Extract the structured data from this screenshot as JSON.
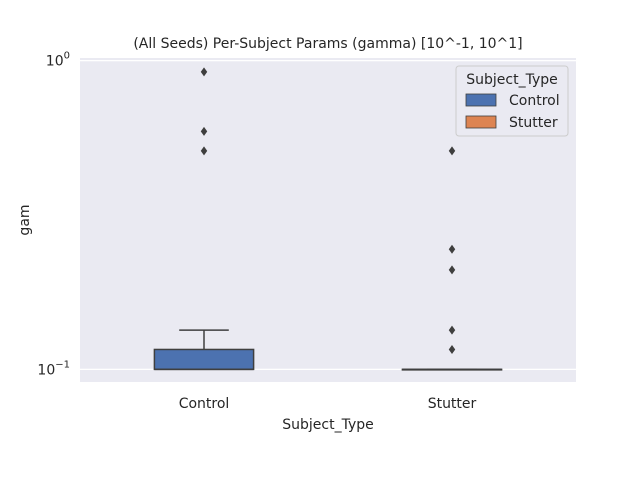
{
  "chart_data": {
    "type": "box",
    "title": "(All Seeds) Per-Subject Params (gamma) [10^-1, 10^1]",
    "xlabel": "Subject_Type",
    "ylabel": "gam",
    "y_scale": "log",
    "ylim": [
      0.091,
      1.02
    ],
    "y_ticks": [
      {
        "value": 0.1,
        "base": "10",
        "exp": "−1"
      },
      {
        "value": 1.0,
        "base": "10",
        "exp": "0"
      }
    ],
    "grid": true,
    "legend": {
      "title": "Subject_Type",
      "placement": "top-right",
      "entries": [
        {
          "label": "Control",
          "color": "#4c72b0"
        },
        {
          "label": "Stutter",
          "color": "#dd8452"
        }
      ]
    },
    "categories": [
      "Control",
      "Stutter"
    ],
    "boxes": [
      {
        "name": "Control",
        "color": "#4c72b0",
        "whisker_low": 0.1,
        "q1": 0.1,
        "median": 0.1,
        "q3": 0.116,
        "whisker_high": 0.134,
        "outliers": [
          0.92,
          0.59,
          0.51
        ]
      },
      {
        "name": "Stutter",
        "color": "#dd8452",
        "whisker_low": 0.1,
        "q1": 0.1,
        "median": 0.1,
        "q3": 0.1,
        "whisker_high": 0.1,
        "outliers": [
          0.51,
          0.245,
          0.21,
          0.134,
          0.116
        ]
      }
    ],
    "colors": {
      "background": "#eaeaf2",
      "grid": "#ffffff",
      "line": "#3f3f3f"
    }
  }
}
